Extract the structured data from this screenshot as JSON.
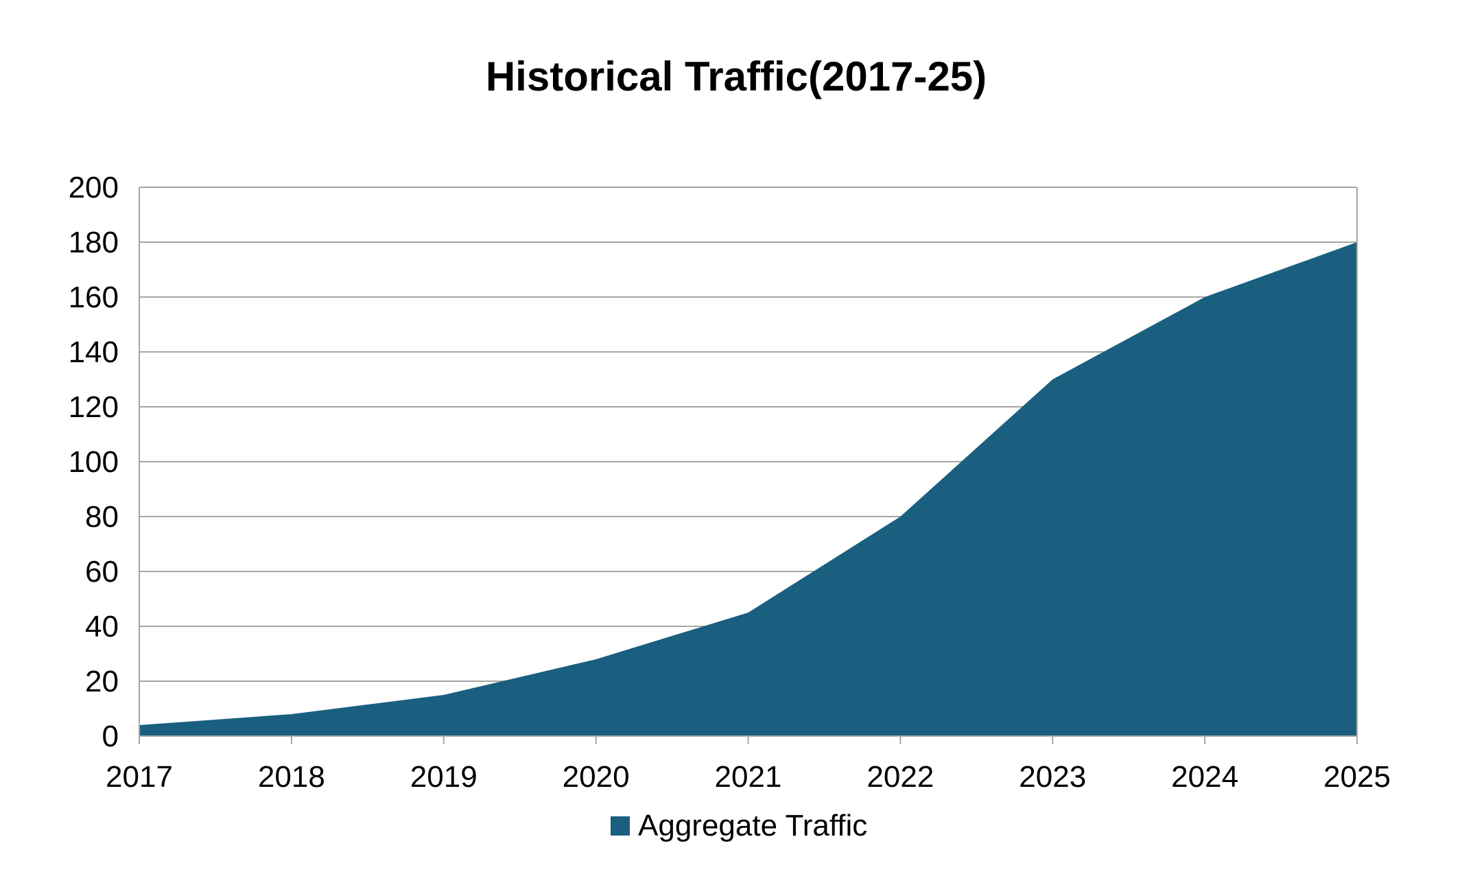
{
  "chart_data": {
    "type": "area",
    "title": "Historical Traffic(2017-25)",
    "xlabel": "",
    "ylabel": "",
    "categories": [
      "2017",
      "2018",
      "2019",
      "2020",
      "2021",
      "2022",
      "2023",
      "2024",
      "2025"
    ],
    "series": [
      {
        "name": "Aggregate Traffic",
        "values": [
          4,
          8,
          15,
          28,
          45,
          80,
          130,
          160,
          180
        ],
        "color": "#1a5f80"
      }
    ],
    "ylim": [
      0,
      200
    ],
    "yticks": [
      "0",
      "20",
      "40",
      "60",
      "80",
      "100",
      "120",
      "140",
      "160",
      "180",
      "200"
    ],
    "grid": true,
    "legend": "bottom"
  }
}
